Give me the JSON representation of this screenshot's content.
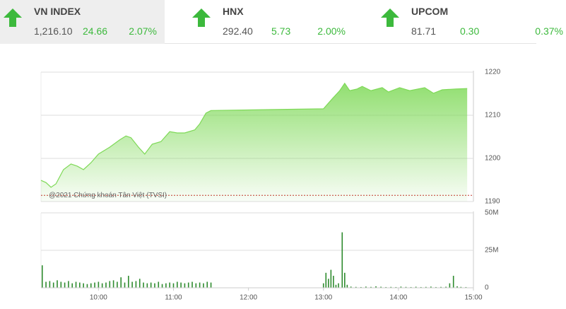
{
  "indices": [
    {
      "name": "VN INDEX",
      "value": "1,216.10",
      "change": "24.66",
      "percent": "2.07%"
    },
    {
      "name": "HNX",
      "value": "292.40",
      "change": "5.73",
      "percent": "2.00%"
    },
    {
      "name": "UPCOM",
      "value": "81.71",
      "change": "0.30",
      "percent": "0.37%"
    }
  ],
  "chart_data": [
    {
      "type": "area",
      "annotation": "@2021 Chứng khoán Tân Việt (TVSI)",
      "color": "#7ed957",
      "reference": 1191.44,
      "x": [
        554,
        558,
        562,
        566,
        572,
        578,
        583,
        588,
        594,
        600,
        609,
        617,
        622,
        626,
        632,
        637,
        643,
        650,
        657,
        663,
        669,
        677,
        681,
        686,
        690,
        780,
        787,
        793,
        797,
        801,
        807,
        811,
        818,
        827,
        832,
        841,
        849,
        861,
        868,
        875,
        886,
        895
      ],
      "values": [
        1194.9,
        1194.4,
        1193.3,
        1194.1,
        1197.4,
        1198.7,
        1198.2,
        1197.4,
        1199.0,
        1201.0,
        1202.6,
        1204.3,
        1205.2,
        1204.8,
        1202.6,
        1201.0,
        1203.3,
        1203.9,
        1206.2,
        1205.9,
        1205.9,
        1206.6,
        1208.0,
        1210.5,
        1211.1,
        1211.5,
        1213.8,
        1215.7,
        1217.4,
        1215.7,
        1216.1,
        1216.7,
        1215.7,
        1216.4,
        1215.4,
        1216.4,
        1215.7,
        1216.4,
        1215.1,
        1215.9,
        1216.1,
        1216.2
      ],
      "xlim": [
        554,
        900
      ],
      "ylim": [
        1190,
        1220
      ],
      "yticks": [
        1190,
        1200,
        1210,
        1220
      ],
      "grid": true
    },
    {
      "type": "bar",
      "color": "#2e8b2e",
      "x": [
        555,
        558,
        561,
        564,
        567,
        570,
        573,
        576,
        579,
        582,
        585,
        588,
        591,
        594,
        597,
        600,
        603,
        606,
        609,
        612,
        615,
        618,
        621,
        624,
        627,
        630,
        633,
        636,
        639,
        642,
        645,
        648,
        651,
        654,
        657,
        660,
        663,
        666,
        669,
        672,
        675,
        678,
        681,
        684,
        687,
        690,
        780,
        782,
        784,
        786,
        788,
        790,
        792,
        795,
        797,
        799,
        802,
        806,
        810,
        814,
        818,
        822,
        826,
        830,
        834,
        838,
        842,
        846,
        850,
        854,
        858,
        862,
        866,
        870,
        874,
        878,
        881,
        884,
        887,
        890,
        894
      ],
      "values": [
        15,
        4,
        4.5,
        3.5,
        5,
        4,
        3.5,
        4.5,
        3,
        4,
        3.5,
        3,
        2.5,
        3,
        3.5,
        4,
        3,
        3.5,
        4.5,
        5,
        4,
        7,
        3.5,
        8,
        4,
        4.5,
        6,
        3.5,
        3,
        3.5,
        3,
        4,
        2.5,
        3,
        3.5,
        3,
        4,
        3.5,
        3,
        3.5,
        4,
        3,
        3.5,
        3,
        4,
        3.5,
        3,
        10,
        6,
        12,
        8,
        2,
        3,
        37,
        10,
        2,
        0.8,
        0.6,
        0.5,
        0.8,
        0.6,
        1,
        0.7,
        0.5,
        0.6,
        0.5,
        0.8,
        0.6,
        0.5,
        0.7,
        0.5,
        0.6,
        0.8,
        0.5,
        0.6,
        0.7,
        3,
        8,
        1,
        0.6,
        0.5
      ],
      "xlim": [
        554,
        900
      ],
      "ylim": [
        0,
        50
      ],
      "yticks": [
        0,
        {
          "value": 25,
          "label": "25M"
        },
        {
          "value": 50,
          "label": "50M"
        }
      ],
      "xticks": [
        {
          "value": 600,
          "label": "10:00"
        },
        {
          "value": 660,
          "label": "11:00"
        },
        {
          "value": 720,
          "label": "12:00"
        },
        {
          "value": 780,
          "label": "13:00"
        },
        {
          "value": 840,
          "label": "14:00"
        },
        {
          "value": 900,
          "label": "15:00"
        }
      ],
      "grid": true
    }
  ]
}
